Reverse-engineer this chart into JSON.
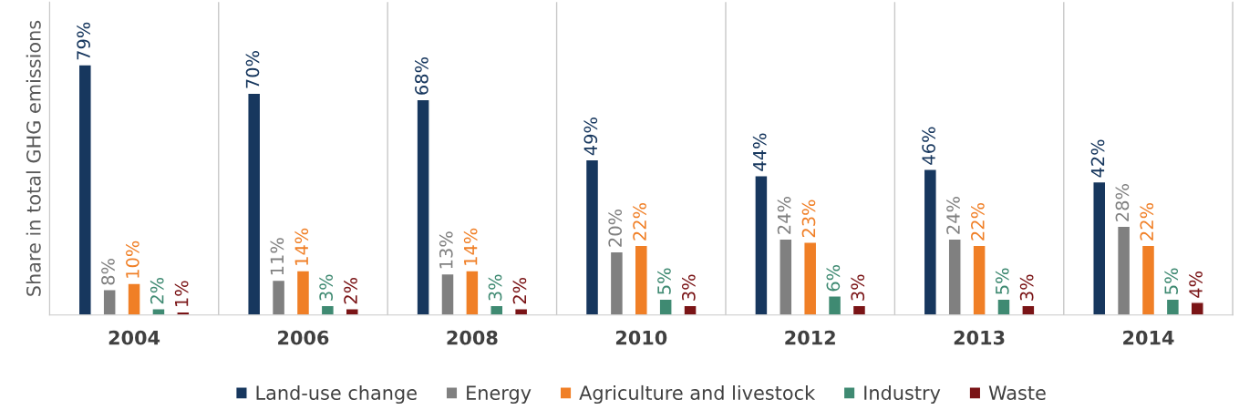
{
  "chart_data": {
    "type": "bar",
    "ylabel": "Share in total GHG emissions",
    "categories": [
      "2004",
      "2006",
      "2008",
      "2010",
      "2012",
      "2013",
      "2014"
    ],
    "series": [
      {
        "name": "Land-use change",
        "color": "#17375e",
        "values": [
          79,
          70,
          68,
          49,
          44,
          46,
          42
        ],
        "value_labels": [
          "79%",
          "70%",
          "68%",
          "49%",
          "44%",
          "46%",
          "42%"
        ]
      },
      {
        "name": "Energy",
        "color": "#808080",
        "values": [
          8,
          11,
          13,
          20,
          24,
          24,
          28
        ],
        "value_labels": [
          "8%",
          "11%",
          "13%",
          "20%",
          "24%",
          "24%",
          "28%"
        ]
      },
      {
        "name": "Agriculture and livestock",
        "color": "#f07f26",
        "values": [
          10,
          14,
          14,
          22,
          23,
          22,
          22
        ],
        "value_labels": [
          "10%",
          "14%",
          "14%",
          "22%",
          "23%",
          "22%",
          "22%"
        ]
      },
      {
        "name": "Industry",
        "color": "#3f8a72",
        "values": [
          2,
          3,
          3,
          5,
          6,
          5,
          5
        ],
        "value_labels": [
          "2%",
          "3%",
          "3%",
          "5%",
          "6%",
          "5%",
          "5%"
        ]
      },
      {
        "name": "Waste",
        "color": "#7a1416",
        "values": [
          1,
          2,
          2,
          3,
          3,
          3,
          4
        ],
        "value_labels": [
          "1%",
          "2%",
          "2%",
          "3%",
          "3%",
          "3%",
          "4%"
        ]
      }
    ],
    "grid": "x",
    "legend": "bottom",
    "tick_labels": "x"
  }
}
